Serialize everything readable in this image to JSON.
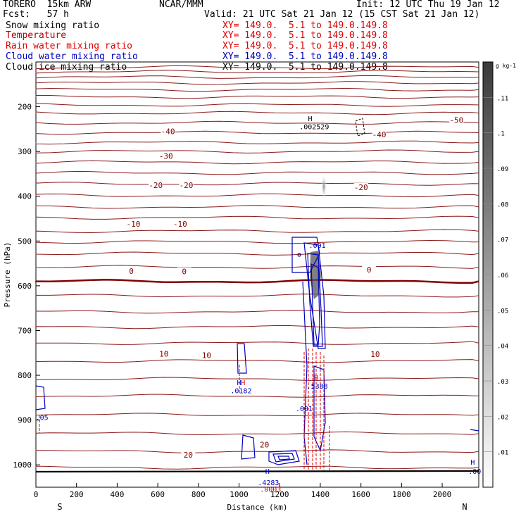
{
  "header": {
    "model": "TORERO  15km ARW",
    "center": "NCAR/MMM",
    "init": "Init: 12 UTC Thu 19 Jan 12",
    "fcst": "Fcst:   57 h",
    "valid": "Valid: 21 UTC Sat 21 Jan 12 (15 CST Sat 21 Jan 12)"
  },
  "fields": [
    {
      "name": "Snow mixing ratio",
      "color": "#000000",
      "xy": "XY= 149.0.  5.1 to 149.0.149.8"
    },
    {
      "name": "Temperature",
      "color": "#b00000",
      "xy": "XY= 149.0.  5.1 to 149.0.149.8"
    },
    {
      "name": "Rain water mixing ratio",
      "color": "#e00000",
      "xy": "XY= 149.0.  5.1 to 149.0.149.8"
    },
    {
      "name": "Cloud water mixing ratio",
      "color": "#0000c0",
      "xy": "XY= 149.0.  5.1 to 149.0.149.8"
    },
    {
      "name": "Cloud ice mixing ratio",
      "color": "#000000",
      "xy": "XY= 149.0.  5.1 to 149.0.149.8"
    }
  ],
  "chart_data": {
    "type": "contour",
    "xlabel": "Distance (km)",
    "ylabel": "Pressure (hPa)",
    "xlim": [
      0,
      2180
    ],
    "ylim": [
      1050,
      100
    ],
    "x_ticks": [
      0,
      200,
      400,
      600,
      800,
      1000,
      1200,
      1400,
      1600,
      1800,
      2000
    ],
    "y_ticks": [
      200,
      300,
      400,
      500,
      600,
      700,
      800,
      900,
      1000
    ],
    "x_end_labels": {
      "left": "S",
      "right": "N"
    },
    "colorbar": {
      "unit": "g kg-1",
      "ticks": [
        0.01,
        0.02,
        0.03,
        0.04,
        0.05,
        0.06,
        0.07,
        0.08,
        0.09,
        0.1,
        0.11
      ],
      "tick_labels": [
        ".01",
        ".02",
        ".03",
        ".04",
        ".05",
        ".06",
        ".07",
        ".08",
        ".09",
        ".1",
        ".11"
      ],
      "max_color": "#444444",
      "min_color": "#ffffff"
    },
    "temperature_contours": [
      {
        "label": "-50",
        "pressure": 230,
        "label_x": 2070
      },
      {
        "label": "-40",
        "pressure": 255,
        "label_x": 650
      },
      {
        "label": "-40",
        "pressure": 262,
        "label_x": 1690
      },
      {
        "label": "-30",
        "pressure": 310,
        "label_x": 640
      },
      {
        "label": "-20",
        "pressure": 375,
        "label_x": 590
      },
      {
        "label": "-20",
        "pressure": 375,
        "label_x": 740
      },
      {
        "label": "-20",
        "pressure": 380,
        "label_x": 1600
      },
      {
        "label": "-10",
        "pressure": 462,
        "label_x": 480
      },
      {
        "label": "-10",
        "pressure": 462,
        "label_x": 710
      },
      {
        "label": "0",
        "pressure": 567,
        "label_x": 470
      },
      {
        "label": "0",
        "pressure": 568,
        "label_x": 730
      },
      {
        "label": "0",
        "pressure": 564,
        "label_x": 1640
      },
      {
        "label": "10",
        "pressure": 752,
        "label_x": 630
      },
      {
        "label": "10",
        "pressure": 755,
        "label_x": 840
      },
      {
        "label": "10",
        "pressure": 753,
        "label_x": 1670
      },
      {
        "label": "20",
        "pressure": 978,
        "label_x": 750
      },
      {
        "label": "20",
        "pressure": 955,
        "label_x": 1125
      }
    ],
    "annotations": [
      {
        "text": "H",
        "x": 1350,
        "pressure": 232,
        "color": "#000000"
      },
      {
        "text": ".002529",
        "x": 1370,
        "pressure": 250,
        "color": "#000000"
      },
      {
        "text": ".001",
        "x": 1385,
        "pressure": 515,
        "color": "#0000c0"
      },
      {
        "text": "H",
        "x": 1000,
        "pressure": 822,
        "color": "#0000c0"
      },
      {
        "text": "H",
        "x": 1020,
        "pressure": 822,
        "color": "#e00000"
      },
      {
        "text": ".0182",
        "x": 1010,
        "pressure": 840,
        "color": "#0000c0"
      },
      {
        "text": "H",
        "x": 1380,
        "pressure": 810,
        "color": "#e00000"
      },
      {
        "text": ".5388",
        "x": 1385,
        "pressure": 830,
        "color": "#0000c0"
      },
      {
        "text": ".001",
        "x": 1320,
        "pressure": 880,
        "color": "#0000c0"
      },
      {
        "text": ".05",
        "x": 30,
        "pressure": 900,
        "color": "#0000c0"
      },
      {
        "text": "H",
        "x": 1140,
        "pressure": 1020,
        "color": "#0000c0"
      },
      {
        "text": ".4283",
        "x": 1145,
        "pressure": 1045,
        "color": "#0000c0"
      },
      {
        "text": ".0003",
        "x": 1155,
        "pressure": 1060,
        "color": "#e00000"
      },
      {
        "text": "H",
        "x": 2150,
        "pressure": 1000,
        "color": "#0000c0"
      },
      {
        "text": ".00",
        "x": 2160,
        "pressure": 1020,
        "color": "#0000c0"
      }
    ]
  }
}
